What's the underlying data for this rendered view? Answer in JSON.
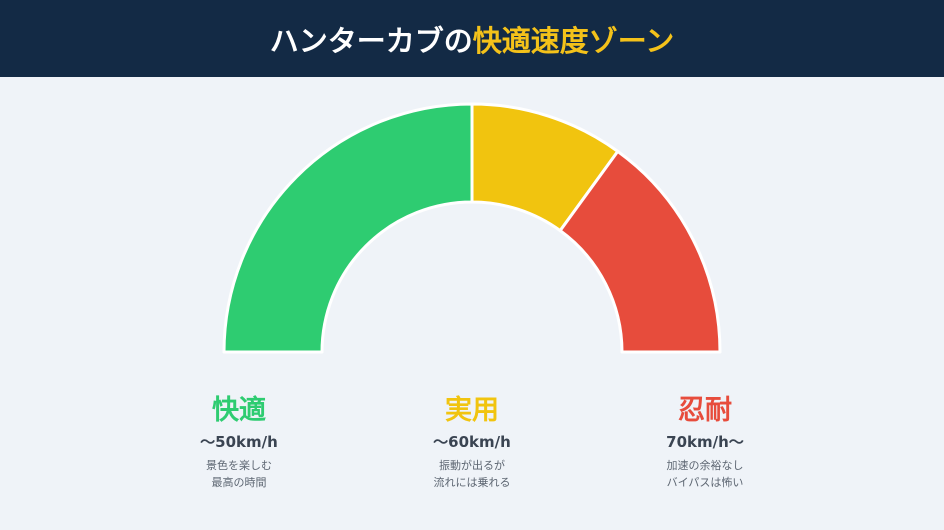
{
  "header": {
    "title_main": "ハンターカブの",
    "title_accent": "快適速度ゾーン",
    "background": "#132a45",
    "accent_color": "#f4c21a"
  },
  "chart_data": {
    "type": "gauge",
    "title": "ハンターカブの快適速度ゾーン",
    "segments": [
      {
        "name": "快適",
        "speed": "〜50km/h",
        "share": 50,
        "color": "#2ecc71",
        "description": [
          "景色を楽しむ",
          "最高の時間"
        ]
      },
      {
        "name": "実用",
        "speed": "〜60km/h",
        "share": 20,
        "color": "#f1c40f",
        "description": [
          "振動が出るが",
          "流れには乗れる"
        ]
      },
      {
        "name": "忍耐",
        "speed": "70km/h〜",
        "share": 30,
        "color": "#e74c3c",
        "description": [
          "加速の余裕なし",
          "バイパスは怖い"
        ]
      }
    ],
    "angle_range": [
      180,
      0
    ],
    "legend_position": "bottom"
  },
  "zones": [
    {
      "name": "快適",
      "speed": "〜50km/h",
      "desc1": "景色を楽しむ",
      "desc2": "最高の時間",
      "color": "#2ecc71"
    },
    {
      "name": "実用",
      "speed": "〜60km/h",
      "desc1": "振動が出るが",
      "desc2": "流れには乗れる",
      "color": "#f1c40f"
    },
    {
      "name": "忍耐",
      "speed": "70km/h〜",
      "desc1": "加速の余裕なし",
      "desc2": "バイパスは怖い",
      "color": "#e74c3c"
    }
  ]
}
